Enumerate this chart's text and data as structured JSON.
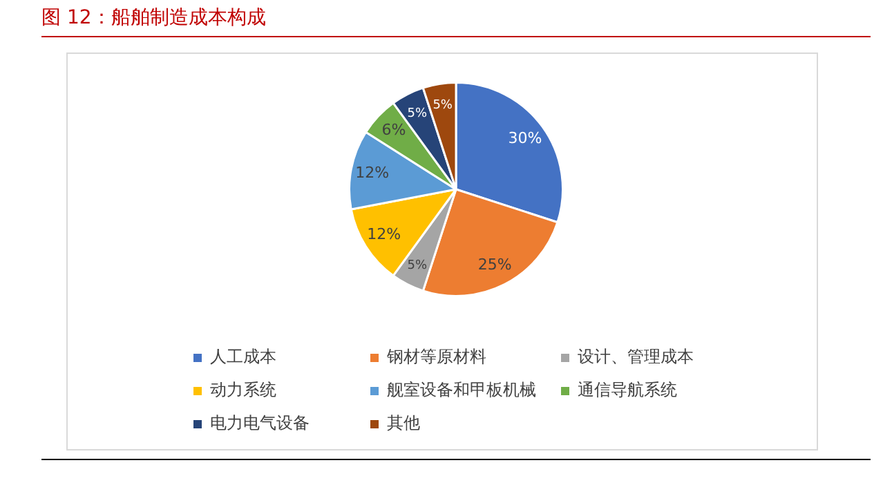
{
  "chart_data": {
    "type": "pie",
    "title": "图 12：船舶制造成本构成",
    "categories": [
      "人工成本",
      "钢材等原材料",
      "设计、管理成本",
      "动力系统",
      "舰室设备和甲板机械",
      "通信导航系统",
      "电力电气设备",
      "其他"
    ],
    "values": [
      30,
      25,
      5,
      12,
      12,
      6,
      5,
      5
    ],
    "colors": [
      "#4472c4",
      "#ed7d31",
      "#a5a5a5",
      "#ffc000",
      "#5b9bd5",
      "#70ad47",
      "#264478",
      "#9e480e"
    ],
    "value_labels": [
      "30%",
      "25%",
      "5%",
      "12%",
      "12%",
      "6%",
      "5%",
      "5%"
    ],
    "legend": "bottom"
  }
}
